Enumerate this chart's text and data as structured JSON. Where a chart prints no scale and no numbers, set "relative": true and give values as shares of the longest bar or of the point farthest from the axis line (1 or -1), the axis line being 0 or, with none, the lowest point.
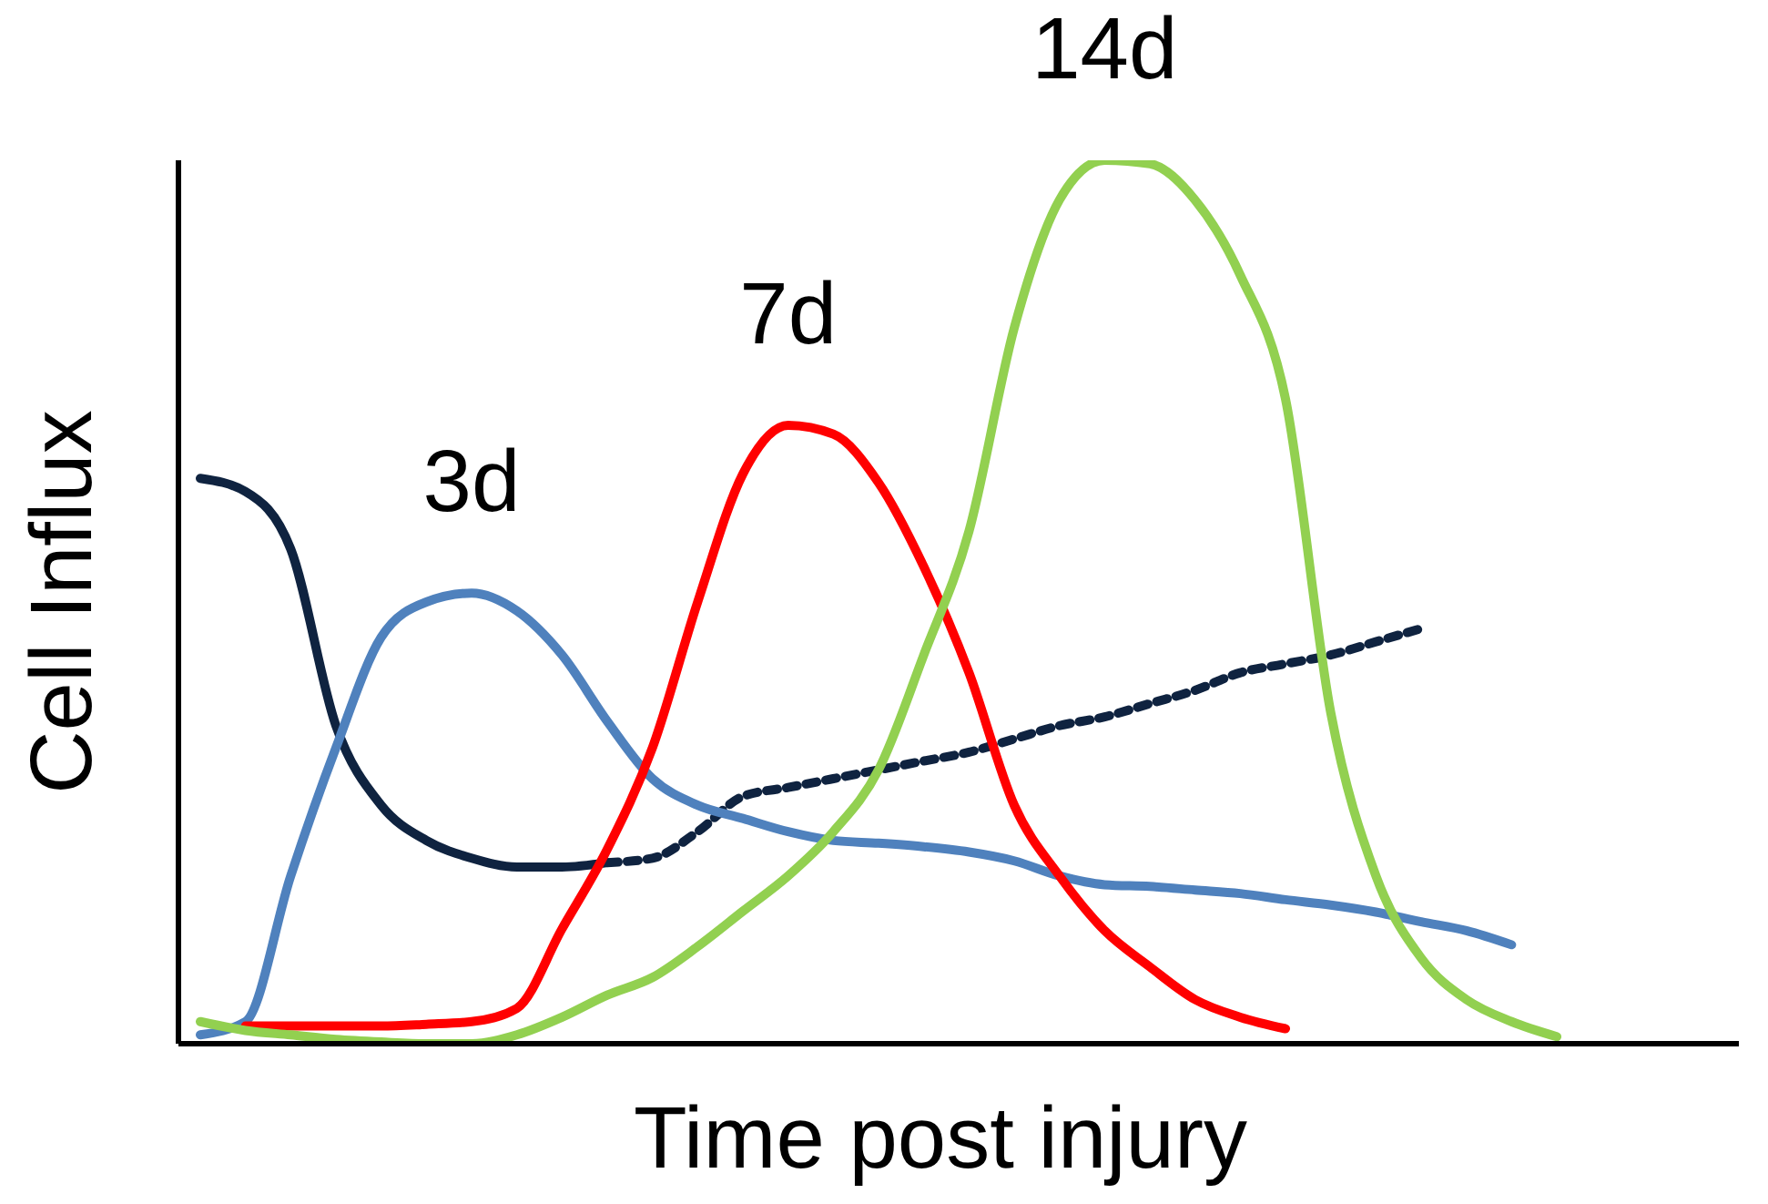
{
  "chart_data": {
    "type": "line",
    "relative": true,
    "xlabel": "Time post injury",
    "ylabel": "Cell Influx",
    "categories": [
      null,
      null,
      null,
      null,
      null,
      null,
      null,
      null,
      null,
      null,
      null,
      null,
      null,
      null,
      null,
      null,
      null,
      null,
      null,
      null,
      null,
      null,
      null,
      null,
      null,
      null,
      null,
      null,
      null,
      null,
      null
    ],
    "series": [
      {
        "color": "#0f2340",
        "line_style": "solid",
        "values": [
          0.64,
          0.625,
          0.56,
          0.36,
          0.27,
          0.23,
          0.21,
          0.2,
          0.2,
          0.205,
          null,
          null,
          null,
          null,
          null,
          null,
          null,
          null,
          null,
          null,
          null,
          null,
          null,
          null,
          null,
          null,
          null,
          null,
          null,
          null,
          null
        ]
      },
      {
        "color": "#0f2340",
        "line_style": "dotted",
        "values": [
          null,
          null,
          null,
          null,
          null,
          null,
          null,
          null,
          null,
          0.205,
          0.21,
          0.24,
          0.28,
          0.29,
          0.3,
          0.31,
          0.32,
          0.33,
          0.345,
          0.36,
          0.37,
          0.385,
          0.4,
          0.42,
          0.43,
          0.44,
          0.455,
          0.47,
          null,
          null,
          null
        ]
      },
      {
        "color": "#4f81bd",
        "line_style": "solid",
        "values": [
          0.01,
          0.025,
          0.19,
          0.335,
          0.46,
          0.5,
          0.51,
          0.49,
          0.44,
          0.365,
          0.3,
          0.27,
          0.255,
          0.24,
          0.23,
          0.227,
          0.223,
          0.217,
          0.207,
          0.19,
          0.18,
          0.178,
          0.174,
          0.17,
          0.163,
          0.157,
          0.149,
          0.138,
          0.128,
          0.112,
          null
        ]
      },
      {
        "color": "#ff0000",
        "line_style": "solid",
        "values": [
          null,
          0.02,
          0.02,
          0.02,
          0.02,
          0.022,
          0.025,
          0.04,
          0.13,
          0.22,
          0.335,
          0.5,
          0.645,
          0.7,
          0.69,
          0.635,
          0.54,
          0.42,
          0.27,
          0.19,
          0.128,
          0.087,
          0.05,
          0.03,
          0.017,
          null,
          null,
          null,
          null,
          null,
          null
        ]
      },
      {
        "color": "#92d050",
        "line_style": "solid",
        "values": [
          0.025,
          0.015,
          0.01,
          0.005,
          0.002,
          0,
          0,
          0.01,
          0.03,
          0.055,
          0.075,
          0.11,
          0.15,
          0.19,
          0.24,
          0.31,
          0.44,
          0.58,
          0.81,
          0.955,
          1,
          0.996,
          0.955,
          0.87,
          0.73,
          0.375,
          0.19,
          0.097,
          0.05,
          0.025,
          0.008
        ]
      }
    ],
    "annotations": [
      "3d",
      "7d",
      "14d"
    ],
    "legend": false,
    "grid": false,
    "marker": "none"
  }
}
